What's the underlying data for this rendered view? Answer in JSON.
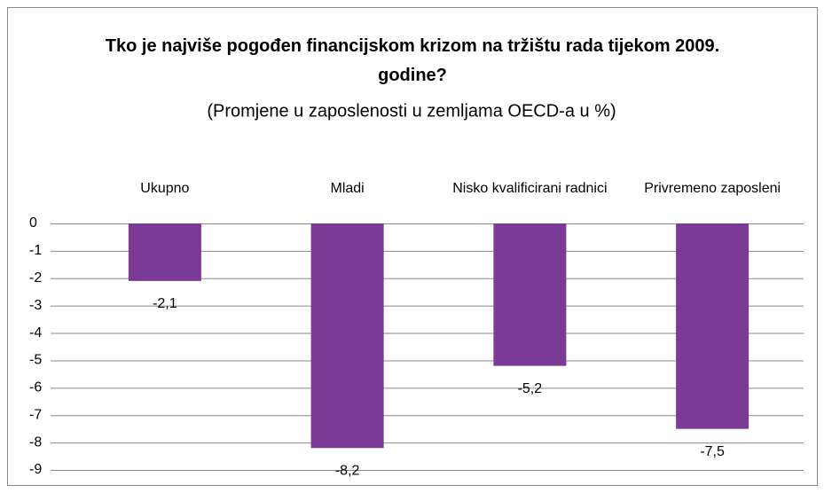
{
  "chart_data": {
    "type": "bar",
    "title": "Tko je najviše pogođen financijskom krizom na tržištu rada tijekom 2009. godine?",
    "subtitle": "(Promjene u zaposlenosti  u zemljama OECD-a u %)",
    "categories": [
      "Ukupno",
      "Mladi",
      "Nisko kvalificirani radnici",
      "Privremeno zaposleni"
    ],
    "values": [
      -2.1,
      -8.2,
      -5.2,
      -7.5
    ],
    "value_labels": [
      "-2,1",
      "-8,2",
      "-5,2",
      "-7,5"
    ],
    "color": "#7b3a96",
    "ylim": [
      -9,
      0
    ],
    "yticks": [
      0,
      -1,
      -2,
      -3,
      -4,
      -5,
      -6,
      -7,
      -8,
      -9
    ],
    "grid": true
  }
}
